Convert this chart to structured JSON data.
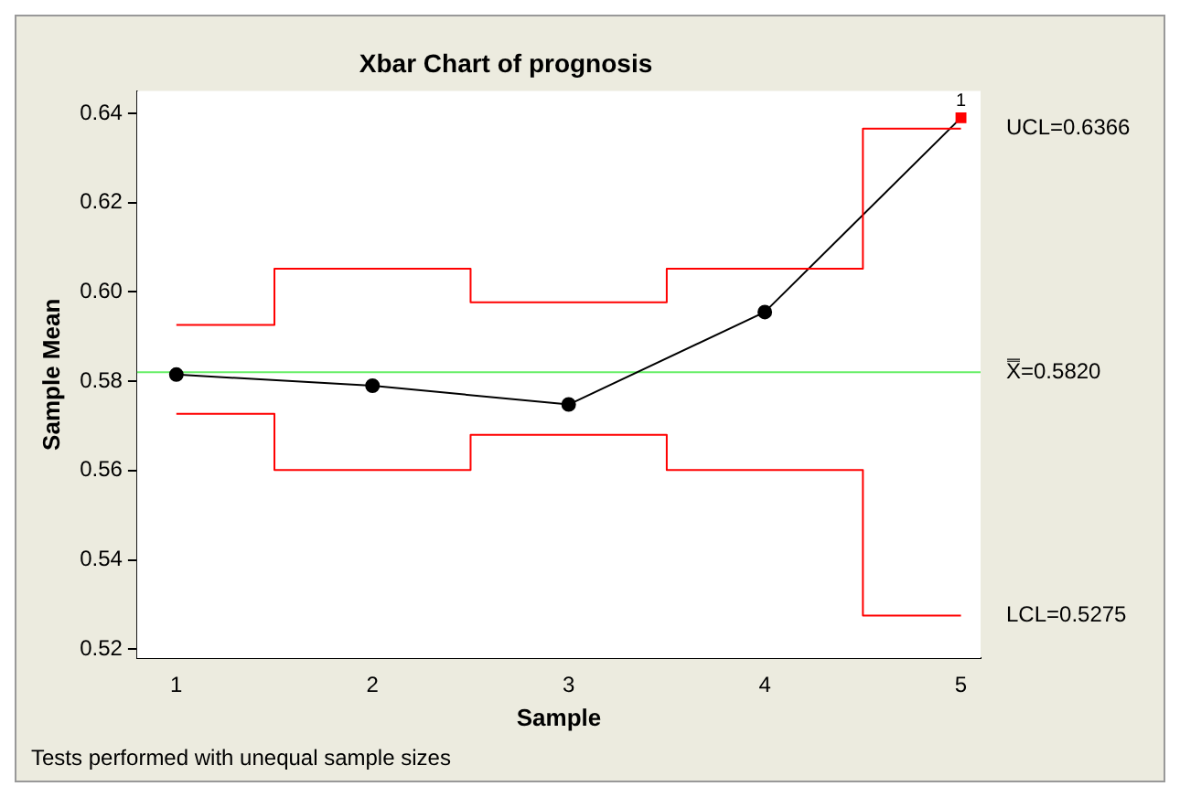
{
  "chart_data": {
    "type": "line",
    "title": "Xbar Chart of prognosis",
    "xlabel": "Sample",
    "ylabel": "Sample Mean",
    "x": [
      1,
      2,
      3,
      4,
      5
    ],
    "xlim": [
      0.8,
      5.1
    ],
    "xticks": [
      1,
      2,
      3,
      4,
      5
    ],
    "ylim": [
      0.518,
      0.645
    ],
    "yticks": [
      0.52,
      0.54,
      0.56,
      0.58,
      {
        "value": 0.6,
        "label": "0.60"
      },
      0.62,
      0.64
    ],
    "series": [
      {
        "type": "step",
        "name": "UCL=0.6366",
        "color": "#ff0000",
        "values": [
          0.5926,
          0.6052,
          0.5977,
          0.6052,
          0.6366
        ],
        "marker": "none"
      },
      {
        "type": "step",
        "name": "LCL=0.5275",
        "color": "#ff0000",
        "values": [
          0.5727,
          0.5601,
          0.568,
          0.5601,
          0.5275
        ],
        "marker": "none"
      },
      {
        "color": "#000000",
        "colors": [
          "#000000",
          "#000000",
          "#000000",
          "#000000",
          "#ff0000"
        ],
        "values": [
          0.5815,
          0.579,
          0.5748,
          0.5955,
          0.639
        ],
        "marker": "circle"
      }
    ],
    "ref_lines": [
      {
        "axis": "y",
        "value": 0.582,
        "label": "X̿=0.5820",
        "color": "#66ee66"
      }
    ],
    "annotations": [
      {
        "text": "1",
        "x": 5,
        "y": 0.639
      },
      "Tests performed with unequal sample sizes"
    ],
    "grid": false,
    "legend": false
  }
}
